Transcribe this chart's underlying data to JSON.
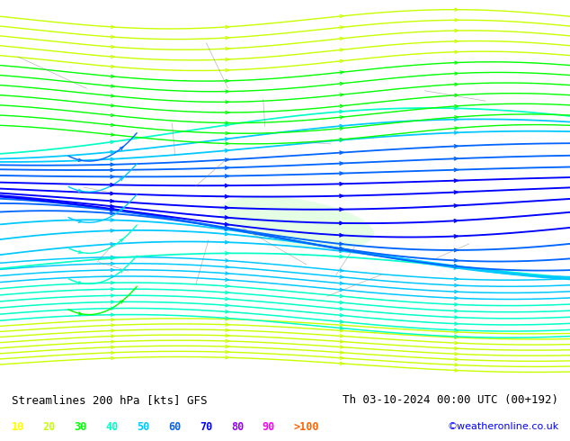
{
  "title_left": "Streamlines 200 hPa [kts] GFS",
  "title_right": "Th 03-10-2024 00:00 UTC (00+192)",
  "credit": "©weatheronline.co.uk",
  "legend_values": [
    "10",
    "20",
    "30",
    "40",
    "50",
    "60",
    "70",
    "80",
    "90",
    ">100"
  ],
  "legend_colors": [
    "#ffff00",
    "#c8ff00",
    "#00ff00",
    "#00ffc8",
    "#00c8ff",
    "#0064ff",
    "#0000ff",
    "#9600ff",
    "#ff00ff",
    "#ff6400"
  ],
  "bg_color": "#aaffaa",
  "land_color": "#aaffaa",
  "sea_color": "#aaffaa",
  "map_bg": "#b8ffb8",
  "title_color": "#000000",
  "credit_color": "#0000ff",
  "fig_width": 6.34,
  "fig_height": 4.9,
  "dpi": 100
}
